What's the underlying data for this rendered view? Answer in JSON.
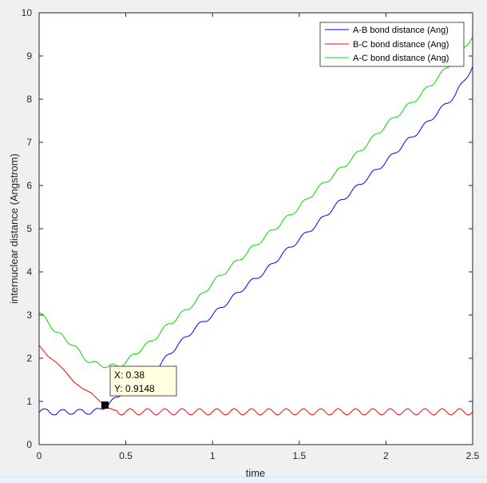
{
  "chart_data": {
    "type": "line",
    "xlabel": "time",
    "ylabel": "internuclear distance (Angstrom)",
    "xlim": [
      0,
      2.5
    ],
    "ylim": [
      0,
      10
    ],
    "xticks": [
      "0",
      "0.5",
      "1",
      "1.5",
      "2",
      "2.5"
    ],
    "xtick_values": [
      0,
      0.5,
      1,
      1.5,
      2,
      2.5
    ],
    "yticks": [
      "0",
      "1",
      "2",
      "3",
      "4",
      "5",
      "6",
      "7",
      "8",
      "9",
      "10"
    ],
    "ytick_values": [
      0,
      1,
      2,
      3,
      4,
      5,
      6,
      7,
      8,
      9,
      10
    ],
    "grid": false,
    "legend_position": "top-right",
    "series": [
      {
        "name": "A-B bond distance (Ang)",
        "color": "#0000ff",
        "x": [
          0,
          0.05,
          0.1,
          0.15,
          0.2,
          0.25,
          0.3,
          0.35,
          0.4,
          0.45,
          0.5,
          0.55,
          0.6,
          0.65,
          0.7,
          0.75,
          0.8,
          0.9,
          1.0,
          1.1,
          1.2,
          1.3,
          1.4,
          1.5,
          1.6,
          1.7,
          1.8,
          1.9,
          2.0,
          2.1,
          2.2,
          2.3,
          2.4,
          2.5
        ],
        "y": [
          0.75,
          0.8,
          0.7,
          0.8,
          0.72,
          0.8,
          0.72,
          0.83,
          0.92,
          1.1,
          1.3,
          1.5,
          1.6,
          1.7,
          1.85,
          2.1,
          2.3,
          2.7,
          3.0,
          3.35,
          3.7,
          4.0,
          4.4,
          4.75,
          5.1,
          5.5,
          5.85,
          6.2,
          6.55,
          6.95,
          7.3,
          7.7,
          8.1,
          8.75
        ]
      },
      {
        "name": "B-C bond distance (Ang)",
        "color": "#ff0000",
        "x": [
          0,
          0.05,
          0.1,
          0.15,
          0.2,
          0.25,
          0.3,
          0.35,
          0.38,
          0.4,
          0.45,
          0.5,
          0.6,
          0.7,
          0.8,
          0.9,
          1.0,
          1.2,
          1.4,
          1.6,
          1.8,
          2.0,
          2.2,
          2.4,
          2.5
        ],
        "y": [
          2.3,
          2.05,
          1.9,
          1.7,
          1.45,
          1.3,
          1.2,
          1.0,
          0.9148,
          0.85,
          0.78,
          0.75,
          0.76,
          0.76,
          0.75,
          0.75,
          0.75,
          0.75,
          0.75,
          0.75,
          0.75,
          0.75,
          0.75,
          0.75,
          0.7
        ],
        "oscillation_amplitude": 0.07
      },
      {
        "name": "A-C bond distance (Ang)",
        "color": "#00dd00",
        "x": [
          0,
          0.05,
          0.1,
          0.15,
          0.2,
          0.25,
          0.3,
          0.35,
          0.4,
          0.45,
          0.5,
          0.55,
          0.6,
          0.65,
          0.7,
          0.75,
          0.8,
          0.9,
          1.0,
          1.1,
          1.2,
          1.3,
          1.4,
          1.5,
          1.6,
          1.7,
          1.8,
          1.9,
          2.0,
          2.1,
          2.2,
          2.3,
          2.4,
          2.5
        ],
        "y": [
          3.05,
          2.85,
          2.6,
          2.45,
          2.3,
          2.05,
          1.9,
          1.85,
          1.82,
          1.82,
          1.9,
          2.1,
          2.25,
          2.4,
          2.6,
          2.8,
          2.95,
          3.3,
          3.75,
          4.1,
          4.45,
          4.8,
          5.15,
          5.5,
          5.9,
          6.25,
          6.6,
          7.0,
          7.4,
          7.75,
          8.1,
          8.5,
          8.95,
          9.45
        ]
      }
    ],
    "datatip": {
      "x_label": "X: 0.38",
      "y_label": "Y: 0.9148",
      "x": 0.38,
      "y": 0.9148
    }
  }
}
